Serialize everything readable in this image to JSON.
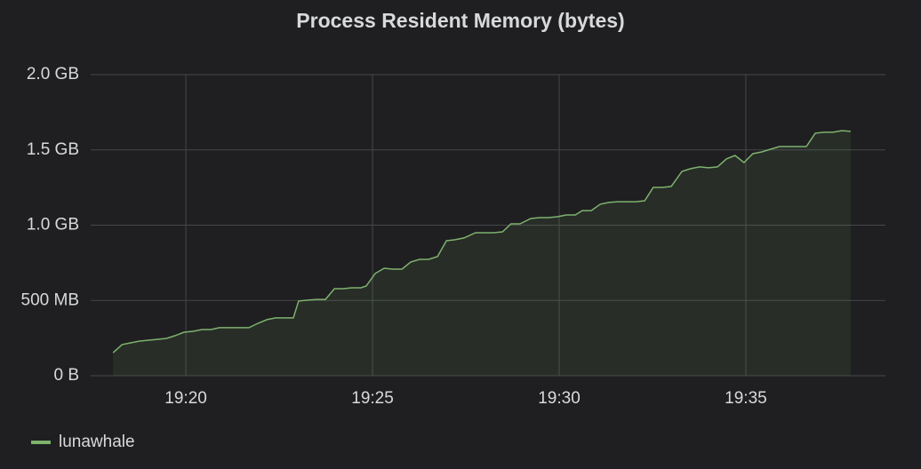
{
  "chart_data": {
    "type": "area",
    "title": "Process Resident Memory (bytes)",
    "x": [
      1158.05,
      1158.29,
      1158.52,
      1158.76,
      1159,
      1159.24,
      1159.48,
      1159.71,
      1159.95,
      1160.19,
      1160.43,
      1160.67,
      1160.9,
      1161.14,
      1161.38,
      1161.69,
      1161.93,
      1162.17,
      1162.4,
      1162.64,
      1162.88,
      1163.02,
      1163.26,
      1163.5,
      1163.74,
      1163.98,
      1164.21,
      1164.45,
      1164.69,
      1164.83,
      1165.07,
      1165.31,
      1165.55,
      1165.79,
      1166.02,
      1166.26,
      1166.5,
      1166.74,
      1166.98,
      1167.21,
      1167.45,
      1167.76,
      1168,
      1168.24,
      1168.48,
      1168.71,
      1168.95,
      1169.24,
      1169.48,
      1169.71,
      1169.95,
      1170.19,
      1170.43,
      1170.62,
      1170.86,
      1171.1,
      1171.33,
      1171.57,
      1171.81,
      1172.05,
      1172.29,
      1172.52,
      1172.76,
      1173,
      1173.29,
      1173.52,
      1173.76,
      1174,
      1174.24,
      1174.48,
      1174.71,
      1174.95,
      1175.19,
      1175.43,
      1175.67,
      1175.9,
      1176.14,
      1176.38,
      1176.62,
      1176.86,
      1177.1,
      1177.33,
      1177.57,
      1177.81
    ],
    "series": [
      {
        "name": "lunawhale",
        "color": "#7eb26d",
        "values": [
          153000000.0,
          207000000.0,
          218000000.0,
          230000000.0,
          236000000.0,
          242000000.0,
          248000000.0,
          266000000.0,
          289000000.0,
          295000000.0,
          307000000.0,
          307000000.0,
          319000000.0,
          319000000.0,
          319000000.0,
          319000000.0,
          348000000.0,
          372000000.0,
          384000000.0,
          384000000.0,
          384000000.0,
          496000000.0,
          502000000.0,
          507000000.0,
          507000000.0,
          578000000.0,
          578000000.0,
          584000000.0,
          584000000.0,
          596000000.0,
          679000000.0,
          714000000.0,
          708000000.0,
          708000000.0,
          755000000.0,
          773000000.0,
          773000000.0,
          791000000.0,
          897000000.0,
          903000000.0,
          915000000.0,
          950000000.0,
          950000000.0,
          950000000.0,
          956000000.0,
          1009000000.0,
          1009000000.0,
          1044000000.0,
          1050000000.0,
          1050000000.0,
          1056000000.0,
          1068000000.0,
          1068000000.0,
          1097000000.0,
          1097000000.0,
          1139000000.0,
          1151000000.0,
          1156000000.0,
          1156000000.0,
          1156000000.0,
          1162000000.0,
          1251000000.0,
          1251000000.0,
          1257000000.0,
          1357000000.0,
          1375000000.0,
          1387000000.0,
          1381000000.0,
          1387000000.0,
          1440000000.0,
          1463000000.0,
          1416000000.0,
          1475000000.0,
          1487000000.0,
          1505000000.0,
          1522000000.0,
          1522000000.0,
          1522000000.0,
          1522000000.0,
          1611000000.0,
          1617000000.0,
          1617000000.0,
          1628000000.0,
          1623000000.0
        ]
      }
    ],
    "xlim": [
      1157.45,
      1178.74
    ],
    "xticks": [
      {
        "value": 1160,
        "label": "19:20"
      },
      {
        "value": 1165,
        "label": "19:25"
      },
      {
        "value": 1170,
        "label": "19:30"
      },
      {
        "value": 1175,
        "label": "19:35"
      }
    ],
    "ylim": [
      0,
      2000000000
    ],
    "yticks": [
      {
        "value": 0,
        "label": "0 B"
      },
      {
        "value": 500000000,
        "label": "500 MB"
      },
      {
        "value": 1000000000,
        "label": "1.0 GB"
      },
      {
        "value": 1500000000,
        "label": "1.5 GB"
      },
      {
        "value": 2000000000,
        "label": "2.0 GB"
      }
    ],
    "grid": true,
    "legend": "bottom-left"
  }
}
